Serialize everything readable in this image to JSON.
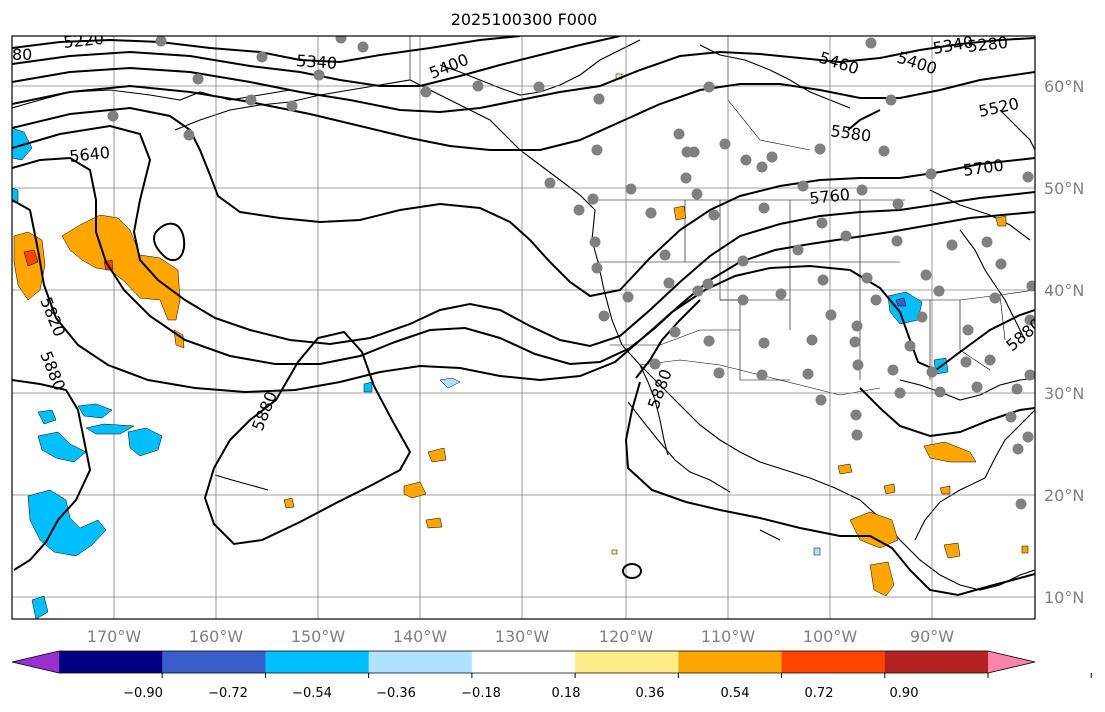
{
  "title": "2025100300 F000",
  "lon_labels": [
    "170°W",
    "160°W",
    "150°W",
    "140°W",
    "130°W",
    "120°W",
    "110°W",
    "100°W",
    "90°W"
  ],
  "lat_labels": [
    "60°N",
    "50°N",
    "40°N",
    "30°N",
    "20°N",
    "10°N"
  ],
  "contour_labels": [
    "5220",
    "5280",
    "5340",
    "5340",
    "5400",
    "5400",
    "5460",
    "5520",
    "5580",
    "5640",
    "5700",
    "5760",
    "5820",
    "5880",
    "5880",
    "5880",
    "5880",
    "80"
  ],
  "colorbar": {
    "ticks": [
      "−0.90",
      "−0.72",
      "−0.54",
      "−0.36",
      "−0.18",
      "0.18",
      "0.36",
      "0.54",
      "0.72",
      "0.90"
    ],
    "colors": [
      "#9b30d0",
      "#000080",
      "#3a5fcd",
      "#00bfff",
      "#b0e2ff",
      "#ffffff",
      "#ffec8b",
      "#ffa500",
      "#ff4500",
      "#b22222",
      "#ff82ab"
    ]
  }
}
